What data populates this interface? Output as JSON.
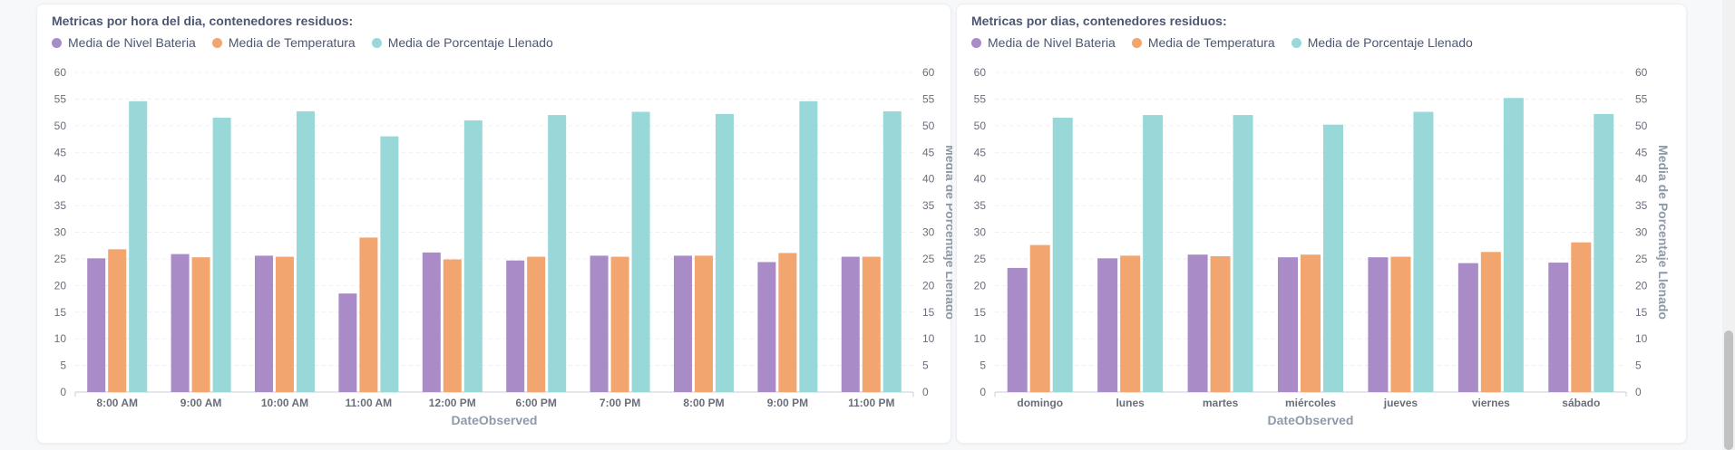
{
  "colors": {
    "bateria": "#a98bc8",
    "temperatura": "#f2a56f",
    "llenado": "#98d8d8"
  },
  "chart_data": [
    {
      "type": "bar",
      "title": "Metricas por hora del dia, contenedores residuos:",
      "xlabel": "DateObserved",
      "ylabel_right": "Media de Porcentaje Llenado",
      "ylim": [
        0,
        60
      ],
      "yticks": [
        "0",
        "5",
        "10",
        "15",
        "20",
        "25",
        "30",
        "35",
        "40",
        "45",
        "50",
        "55",
        "60"
      ],
      "grid": true,
      "legend_position": "top-left",
      "categories": [
        "8:00 AM",
        "9:00 AM",
        "10:00 AM",
        "11:00 AM",
        "12:00 PM",
        "6:00 PM",
        "7:00 PM",
        "8:00 PM",
        "9:00 PM",
        "11:00 PM"
      ],
      "series": [
        {
          "name": "Media de Nivel Bateria",
          "values": [
            25.1,
            25.9,
            25.6,
            18.5,
            26.2,
            24.7,
            25.6,
            25.6,
            24.4,
            25.4
          ]
        },
        {
          "name": "Media de Temperatura",
          "values": [
            26.8,
            25.3,
            25.4,
            29.0,
            24.9,
            25.4,
            25.4,
            25.6,
            26.1,
            25.4
          ]
        },
        {
          "name": "Media de Porcentaje Llenado",
          "values": [
            54.6,
            51.5,
            52.7,
            48.0,
            51.0,
            52.0,
            52.6,
            52.2,
            54.6,
            52.7
          ]
        }
      ]
    },
    {
      "type": "bar",
      "title": "Metricas por dias, contenedores residuos:",
      "xlabel": "DateObserved",
      "ylabel_right": "Media de Porcentaje Llenado",
      "ylim": [
        0,
        60
      ],
      "yticks": [
        "0",
        "5",
        "10",
        "15",
        "20",
        "25",
        "30",
        "35",
        "40",
        "45",
        "50",
        "55",
        "60"
      ],
      "grid": true,
      "legend_position": "top-left",
      "categories": [
        "domingo",
        "lunes",
        "martes",
        "miércoles",
        "jueves",
        "viernes",
        "sábado"
      ],
      "series": [
        {
          "name": "Media de Nivel Bateria",
          "values": [
            23.3,
            25.1,
            25.8,
            25.3,
            25.3,
            24.2,
            24.3
          ]
        },
        {
          "name": "Media de Temperatura",
          "values": [
            27.6,
            25.6,
            25.5,
            25.8,
            25.4,
            26.3,
            28.1
          ]
        },
        {
          "name": "Media de Porcentaje Llenado",
          "values": [
            51.5,
            52.0,
            52.0,
            50.2,
            52.6,
            55.2,
            52.2
          ]
        }
      ]
    }
  ]
}
